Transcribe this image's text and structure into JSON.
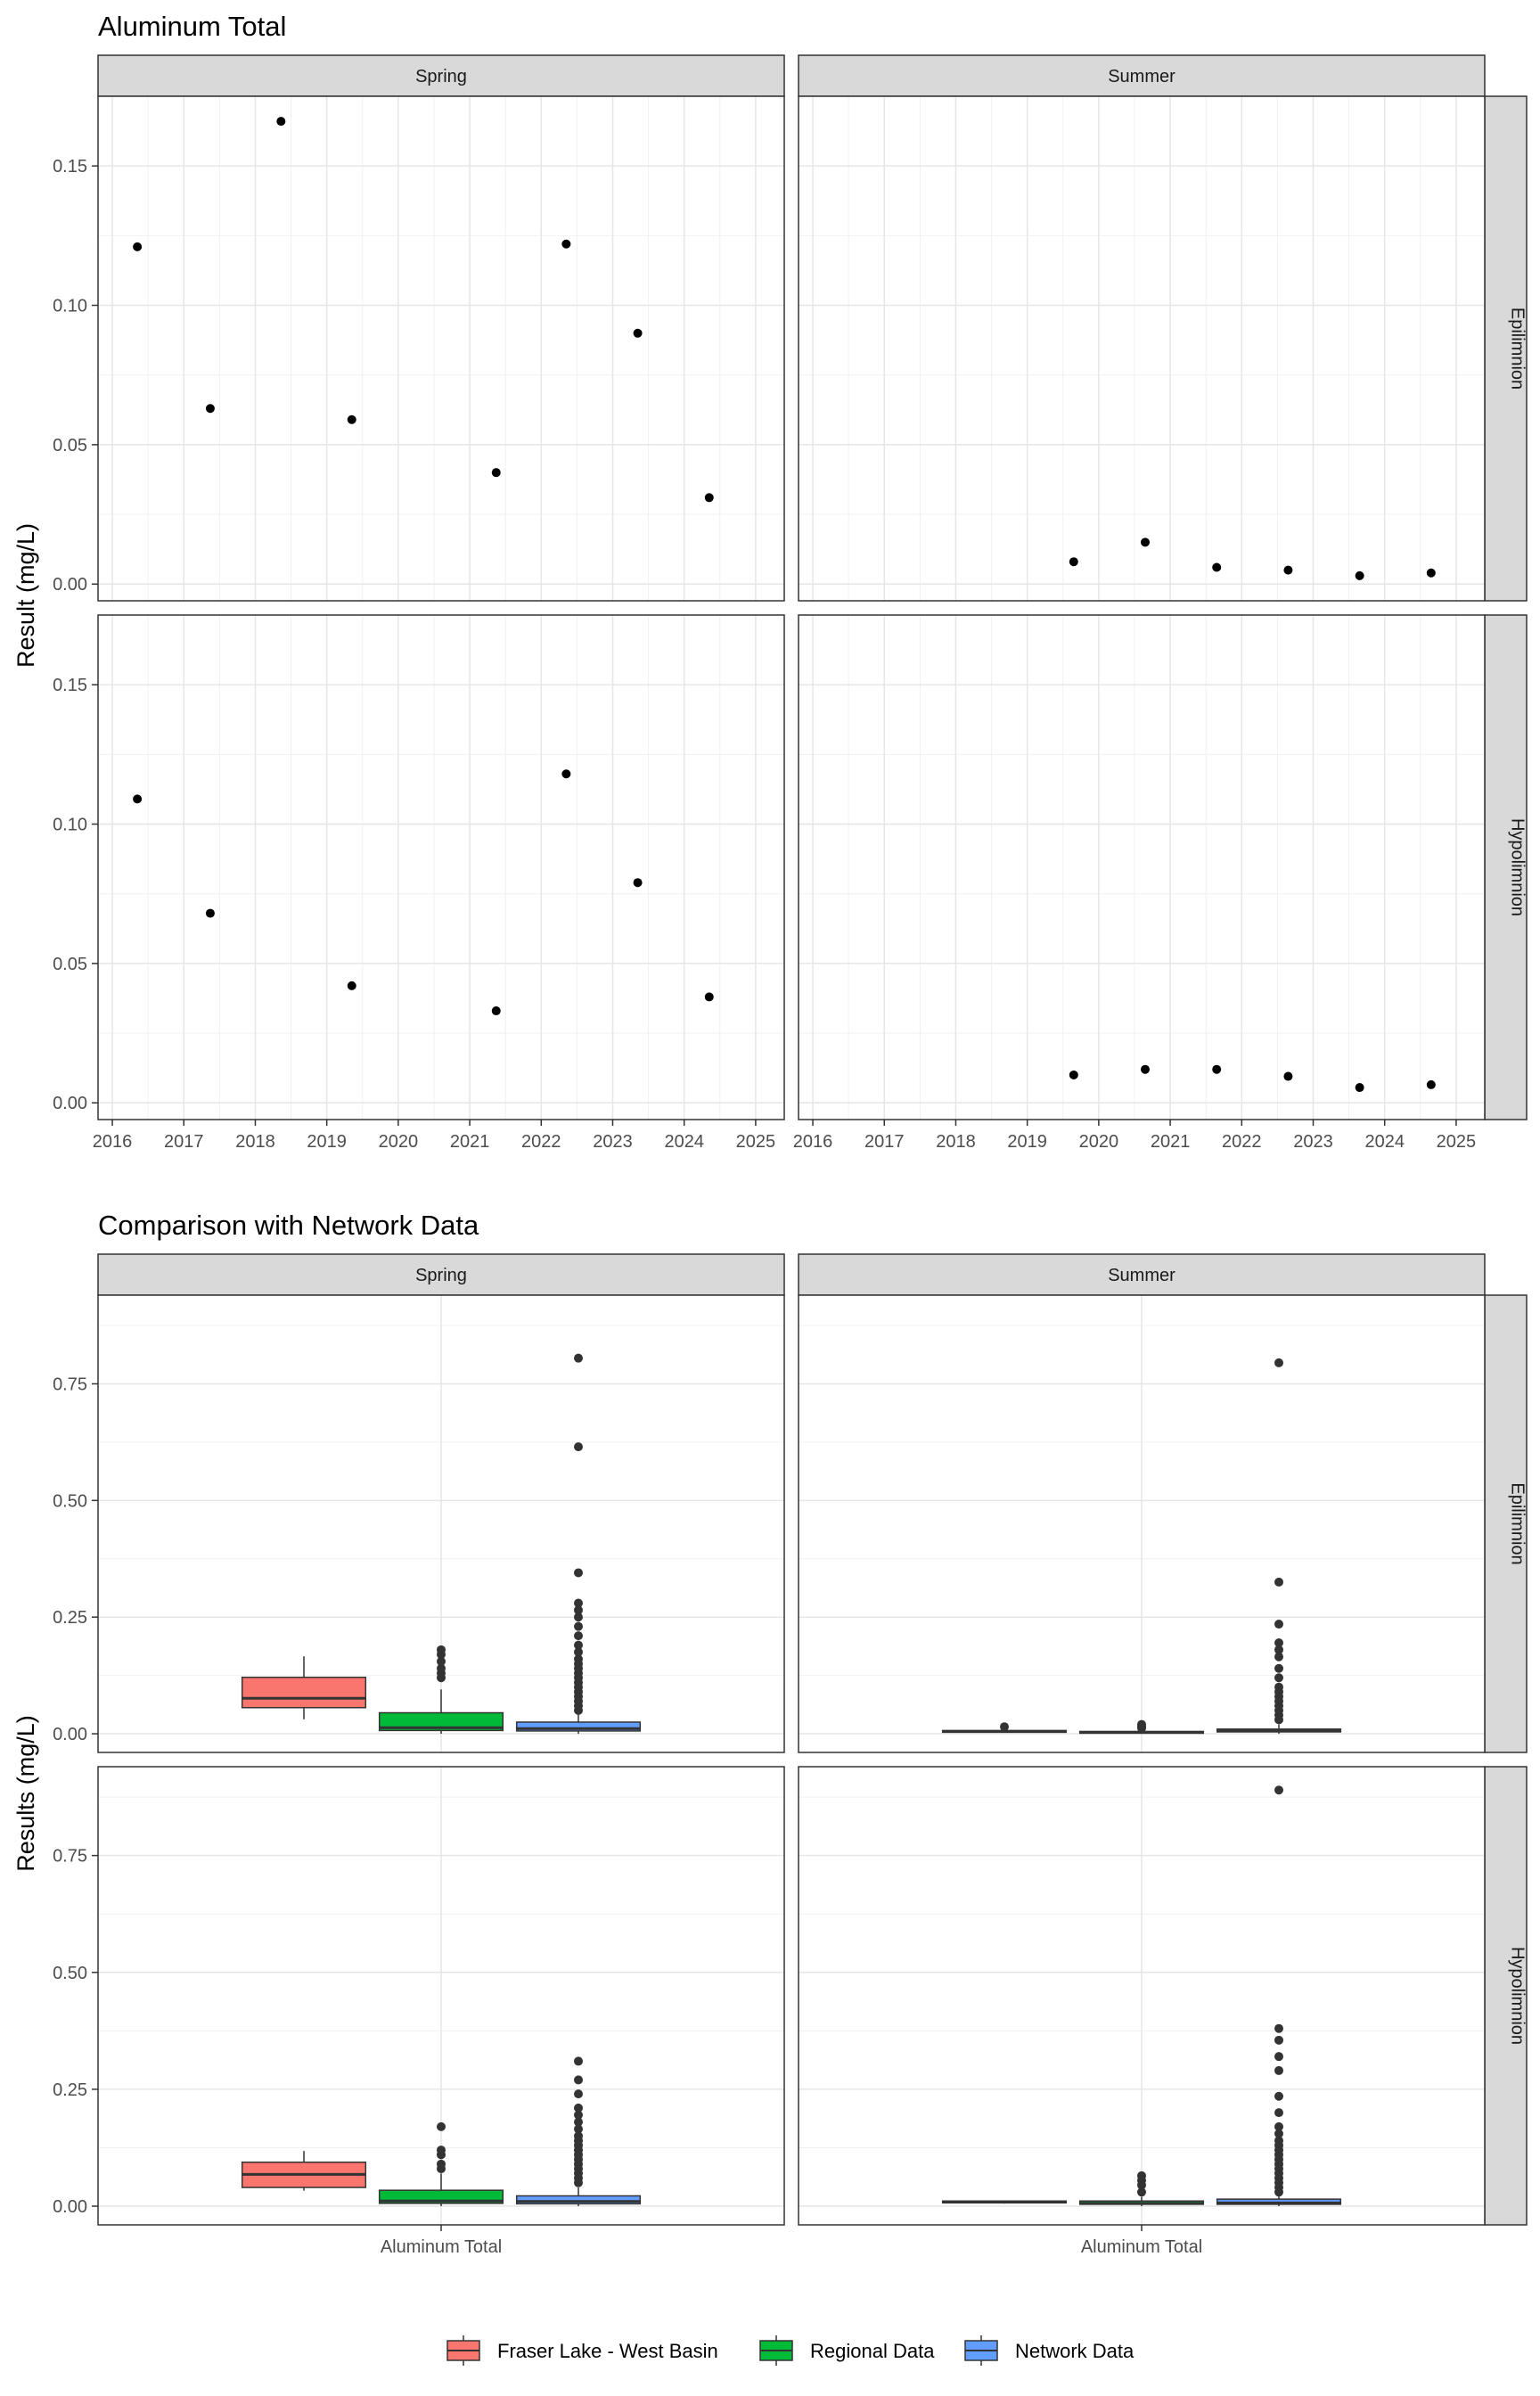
{
  "chart_data": [
    {
      "type": "scatter",
      "title": "Aluminum Total",
      "ylabel": "Result (mg/L)",
      "xlabel": "",
      "facet_columns": [
        "Spring",
        "Summer"
      ],
      "facet_rows": [
        "Epilimnion",
        "Hypolimnion"
      ],
      "xlim": [
        2015.8,
        2025.4
      ],
      "ylim": [
        -0.006,
        0.175
      ],
      "x_ticks": [
        2016,
        2017,
        2018,
        2019,
        2020,
        2021,
        2022,
        2023,
        2024,
        2025
      ],
      "y_ticks": [
        0,
        0.05,
        0.1,
        0.15
      ],
      "y_tick_labels": [
        "0.00",
        "0.05",
        "0.10",
        "0.15"
      ],
      "grid": true,
      "panels": [
        {
          "column": "Spring",
          "row": "Epilimnion",
          "points": [
            [
              2016.35,
              0.121
            ],
            [
              2017.37,
              0.063
            ],
            [
              2018.36,
              0.166
            ],
            [
              2019.35,
              0.059
            ],
            [
              2021.37,
              0.04
            ],
            [
              2022.35,
              0.122
            ],
            [
              2023.35,
              0.09
            ],
            [
              2024.35,
              0.031
            ]
          ]
        },
        {
          "column": "Summer",
          "row": "Epilimnion",
          "points": [
            [
              2019.65,
              0.008
            ],
            [
              2020.65,
              0.015
            ],
            [
              2021.65,
              0.006
            ],
            [
              2022.65,
              0.005
            ],
            [
              2023.65,
              0.003
            ],
            [
              2024.65,
              0.004
            ]
          ]
        },
        {
          "column": "Spring",
          "row": "Hypolimnion",
          "points": [
            [
              2016.35,
              0.109
            ],
            [
              2017.37,
              0.068
            ],
            [
              2019.35,
              0.042
            ],
            [
              2021.37,
              0.033
            ],
            [
              2022.35,
              0.118
            ],
            [
              2023.35,
              0.079
            ],
            [
              2024.35,
              0.038
            ]
          ]
        },
        {
          "column": "Summer",
          "row": "Hypolimnion",
          "points": [
            [
              2019.65,
              0.01
            ],
            [
              2020.65,
              0.012
            ],
            [
              2021.65,
              0.012
            ],
            [
              2022.65,
              0.0095
            ],
            [
              2023.65,
              0.0055
            ],
            [
              2024.65,
              0.0065
            ]
          ]
        }
      ]
    },
    {
      "type": "box",
      "title": "Comparison with Network Data",
      "ylabel": "Results (mg/L)",
      "category": "Aluminum Total",
      "facet_columns": [
        "Spring",
        "Summer"
      ],
      "facet_rows": [
        "Epilimnion",
        "Hypolimnion"
      ],
      "ylim": [
        -0.04,
        0.94
      ],
      "y_ticks": [
        0,
        0.25,
        0.5,
        0.75
      ],
      "y_tick_labels": [
        "0.00",
        "0.25",
        "0.50",
        "0.75"
      ],
      "grid": true,
      "legend": {
        "position": "bottom",
        "entries": [
          {
            "name": "Fraser Lake - West Basin",
            "color": "#f8766d"
          },
          {
            "name": "Regional Data",
            "color": "#00ba38"
          },
          {
            "name": "Network Data",
            "color": "#619cff"
          }
        ]
      },
      "panels": [
        {
          "column": "Spring",
          "row": "Epilimnion",
          "boxes": [
            {
              "series": "Fraser Lake - West Basin",
              "low": 0.031,
              "q1": 0.056,
              "median": 0.076,
              "q3": 0.121,
              "high": 0.166,
              "outliers": []
            },
            {
              "series": "Regional Data",
              "low": 0.0,
              "q1": 0.007,
              "median": 0.013,
              "q3": 0.045,
              "high": 0.095,
              "outliers": [
                0.12,
                0.13,
                0.14,
                0.155,
                0.17,
                0.18
              ]
            },
            {
              "series": "Network Data",
              "low": 0.0,
              "q1": 0.006,
              "median": 0.011,
              "q3": 0.025,
              "high": 0.045,
              "outliers": [
                0.05,
                0.06,
                0.07,
                0.08,
                0.09,
                0.1,
                0.11,
                0.12,
                0.13,
                0.14,
                0.15,
                0.16,
                0.175,
                0.19,
                0.21,
                0.23,
                0.25,
                0.265,
                0.28,
                0.345,
                0.615,
                0.805
              ]
            }
          ]
        },
        {
          "column": "Summer",
          "row": "Epilimnion",
          "boxes": [
            {
              "series": "Fraser Lake - West Basin",
              "low": 0.003,
              "q1": 0.004,
              "median": 0.005,
              "q3": 0.007,
              "high": 0.01,
              "outliers": [
                0.015
              ]
            },
            {
              "series": "Regional Data",
              "low": 0.0,
              "q1": 0.002,
              "median": 0.003,
              "q3": 0.005,
              "high": 0.009,
              "outliers": [
                0.012,
                0.016,
                0.02
              ]
            },
            {
              "series": "Network Data",
              "low": 0.0,
              "q1": 0.004,
              "median": 0.006,
              "q3": 0.01,
              "high": 0.02,
              "outliers": [
                0.03,
                0.04,
                0.05,
                0.06,
                0.07,
                0.08,
                0.09,
                0.1,
                0.12,
                0.14,
                0.165,
                0.18,
                0.195,
                0.235,
                0.325,
                0.795
              ]
            }
          ]
        },
        {
          "column": "Spring",
          "row": "Hypolimnion",
          "boxes": [
            {
              "series": "Fraser Lake - West Basin",
              "low": 0.033,
              "q1": 0.04,
              "median": 0.068,
              "q3": 0.094,
              "high": 0.118,
              "outliers": []
            },
            {
              "series": "Regional Data",
              "low": 0.0,
              "q1": 0.006,
              "median": 0.011,
              "q3": 0.034,
              "high": 0.07,
              "outliers": [
                0.08,
                0.09,
                0.11,
                0.12,
                0.17
              ]
            },
            {
              "series": "Network Data",
              "low": 0.0,
              "q1": 0.005,
              "median": 0.01,
              "q3": 0.022,
              "high": 0.04,
              "outliers": [
                0.05,
                0.06,
                0.07,
                0.08,
                0.09,
                0.1,
                0.11,
                0.12,
                0.13,
                0.14,
                0.15,
                0.165,
                0.18,
                0.195,
                0.21,
                0.24,
                0.27,
                0.31
              ]
            }
          ]
        },
        {
          "column": "Summer",
          "row": "Hypolimnion",
          "boxes": [
            {
              "series": "Fraser Lake - West Basin",
              "low": 0.0055,
              "q1": 0.007,
              "median": 0.0095,
              "q3": 0.011,
              "high": 0.012,
              "outliers": []
            },
            {
              "series": "Regional Data",
              "low": 0.0,
              "q1": 0.004,
              "median": 0.006,
              "q3": 0.011,
              "high": 0.02,
              "outliers": [
                0.03,
                0.045,
                0.055,
                0.065
              ]
            },
            {
              "series": "Network Data",
              "low": 0.0,
              "q1": 0.004,
              "median": 0.007,
              "q3": 0.015,
              "high": 0.025,
              "outliers": [
                0.03,
                0.04,
                0.05,
                0.06,
                0.07,
                0.08,
                0.09,
                0.1,
                0.11,
                0.12,
                0.13,
                0.14,
                0.155,
                0.17,
                0.2,
                0.235,
                0.29,
                0.32,
                0.355,
                0.38,
                0.89
              ]
            }
          ]
        }
      ]
    }
  ]
}
